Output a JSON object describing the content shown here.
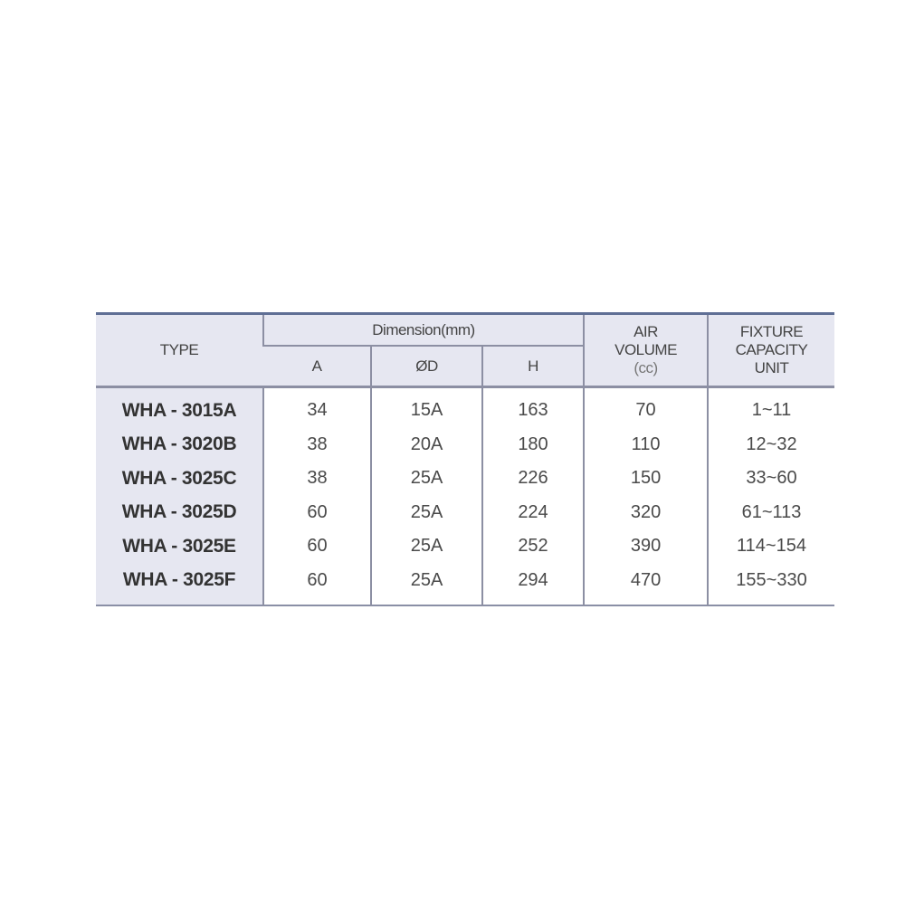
{
  "table": {
    "headers": {
      "type": "TYPE",
      "dimension": "Dimension(mm)",
      "a": "A",
      "d": "ØD",
      "h": "H",
      "air_line1": "AIR",
      "air_line2": "VOLUME",
      "air_unit": "(cc)",
      "fixture_line1": "FIXTURE",
      "fixture_line2": "CAPACITY",
      "fixture_line3": "UNIT"
    },
    "rows": [
      {
        "type": "WHA - 3015A",
        "a": "34",
        "d": "15A",
        "h": "163",
        "air": "70",
        "fixture": "1~11"
      },
      {
        "type": "WHA - 3020B",
        "a": "38",
        "d": "20A",
        "h": "180",
        "air": "110",
        "fixture": "12~32"
      },
      {
        "type": "WHA - 3025C",
        "a": "38",
        "d": "25A",
        "h": "226",
        "air": "150",
        "fixture": "33~60"
      },
      {
        "type": "WHA - 3025D",
        "a": "60",
        "d": "25A",
        "h": "224",
        "air": "320",
        "fixture": "61~113"
      },
      {
        "type": "WHA - 3025E",
        "a": "60",
        "d": "25A",
        "h": "252",
        "air": "390",
        "fixture": "114~154"
      },
      {
        "type": "WHA - 3025F",
        "a": "60",
        "d": "25A",
        "h": "294",
        "air": "470",
        "fixture": "155~330"
      }
    ]
  },
  "colors": {
    "header_bg": "#e6e7f1",
    "top_rule": "#5f6f95",
    "grid": "#8c8fa3"
  }
}
